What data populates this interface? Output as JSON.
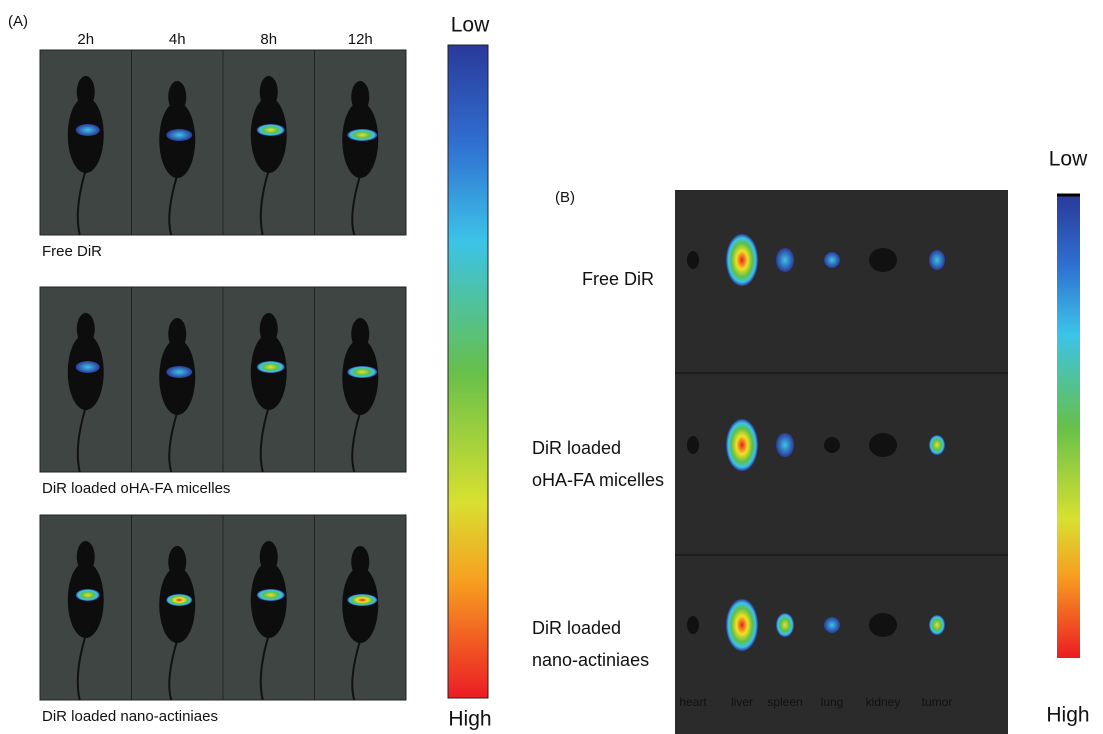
{
  "panel_a": {
    "label": "(A)",
    "times": [
      "2h",
      "4h",
      "8h",
      "12h"
    ],
    "groups": [
      "Free DiR",
      "DiR loaded oHA-FA micelles",
      "DiR loaded nano-actiniaes"
    ],
    "scale": {
      "low": "Low",
      "high": "High"
    }
  },
  "panel_b": {
    "label": "(B)",
    "rows": [
      [
        "Free DiR"
      ],
      [
        "DiR loaded",
        "oHA-FA micelles"
      ],
      [
        "DiR loaded",
        "nano-actiniaes"
      ]
    ],
    "organs": [
      "heart",
      "liver",
      "spleen",
      "lung",
      "kidney",
      "tumor"
    ],
    "scale": {
      "low": "Low",
      "high": "High"
    }
  }
}
